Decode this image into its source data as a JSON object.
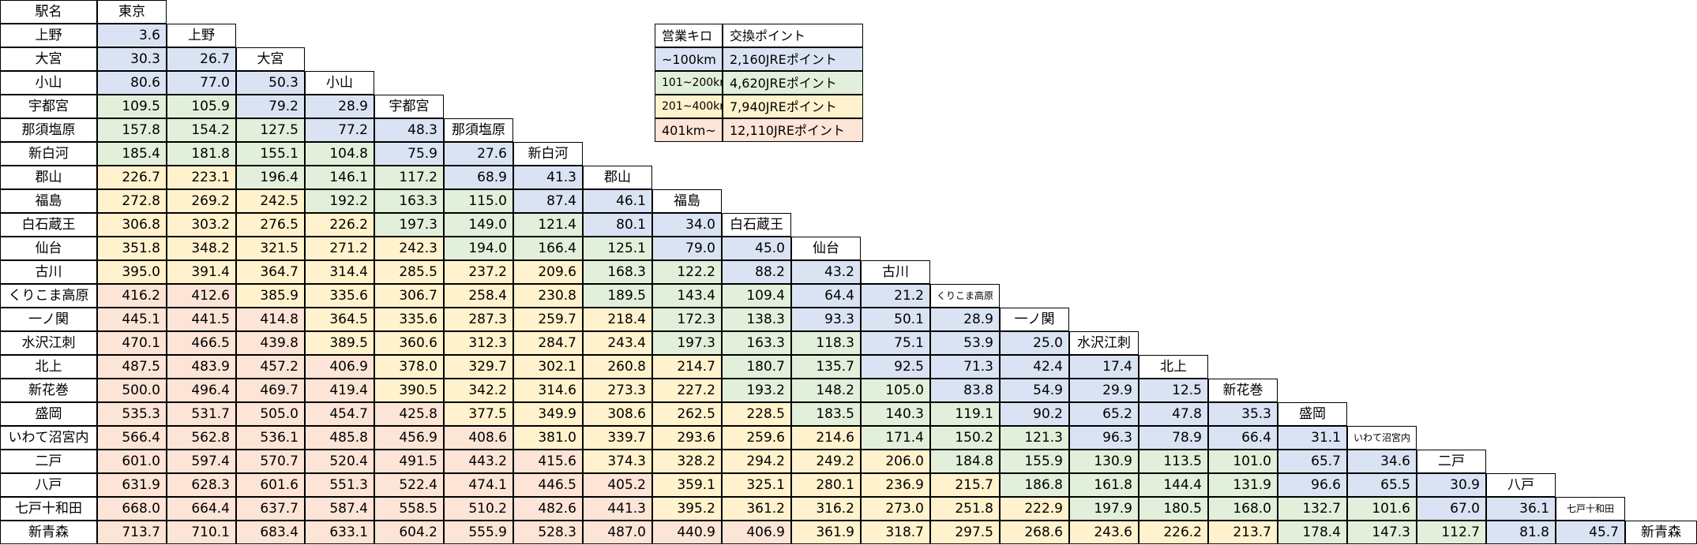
{
  "table": {
    "corner_label": "駅名",
    "stations": [
      "東京",
      "上野",
      "大宮",
      "小山",
      "宇都宮",
      "那須塩原",
      "新白河",
      "郡山",
      "福島",
      "白石蔵王",
      "仙台",
      "古川",
      "くりこま高原",
      "一ノ関",
      "水沢江刺",
      "北上",
      "新花巻",
      "盛岡",
      "いわて沼宮内",
      "二戸",
      "八戸",
      "七戸十和田",
      "新青森"
    ],
    "small_station_labels": [
      "くりこま高原",
      "いわて沼宮内",
      "七戸十和田"
    ],
    "rows": [
      [
        "3.6"
      ],
      [
        "30.3",
        "26.7"
      ],
      [
        "80.6",
        "77.0",
        "50.3"
      ],
      [
        "109.5",
        "105.9",
        "79.2",
        "28.9"
      ],
      [
        "157.8",
        "154.2",
        "127.5",
        "77.2",
        "48.3"
      ],
      [
        "185.4",
        "181.8",
        "155.1",
        "104.8",
        "75.9",
        "27.6"
      ],
      [
        "226.7",
        "223.1",
        "196.4",
        "146.1",
        "117.2",
        "68.9",
        "41.3"
      ],
      [
        "272.8",
        "269.2",
        "242.5",
        "192.2",
        "163.3",
        "115.0",
        "87.4",
        "46.1"
      ],
      [
        "306.8",
        "303.2",
        "276.5",
        "226.2",
        "197.3",
        "149.0",
        "121.4",
        "80.1",
        "34.0"
      ],
      [
        "351.8",
        "348.2",
        "321.5",
        "271.2",
        "242.3",
        "194.0",
        "166.4",
        "125.1",
        "79.0",
        "45.0"
      ],
      [
        "395.0",
        "391.4",
        "364.7",
        "314.4",
        "285.5",
        "237.2",
        "209.6",
        "168.3",
        "122.2",
        "88.2",
        "43.2"
      ],
      [
        "416.2",
        "412.6",
        "385.9",
        "335.6",
        "306.7",
        "258.4",
        "230.8",
        "189.5",
        "143.4",
        "109.4",
        "64.4",
        "21.2"
      ],
      [
        "445.1",
        "441.5",
        "414.8",
        "364.5",
        "335.6",
        "287.3",
        "259.7",
        "218.4",
        "172.3",
        "138.3",
        "93.3",
        "50.1",
        "28.9"
      ],
      [
        "470.1",
        "466.5",
        "439.8",
        "389.5",
        "360.6",
        "312.3",
        "284.7",
        "243.4",
        "197.3",
        "163.3",
        "118.3",
        "75.1",
        "53.9",
        "25.0"
      ],
      [
        "487.5",
        "483.9",
        "457.2",
        "406.9",
        "378.0",
        "329.7",
        "302.1",
        "260.8",
        "214.7",
        "180.7",
        "135.7",
        "92.5",
        "71.3",
        "42.4",
        "17.4"
      ],
      [
        "500.0",
        "496.4",
        "469.7",
        "419.4",
        "390.5",
        "342.2",
        "314.6",
        "273.3",
        "227.2",
        "193.2",
        "148.2",
        "105.0",
        "83.8",
        "54.9",
        "29.9",
        "12.5"
      ],
      [
        "535.3",
        "531.7",
        "505.0",
        "454.7",
        "425.8",
        "377.5",
        "349.9",
        "308.6",
        "262.5",
        "228.5",
        "183.5",
        "140.3",
        "119.1",
        "90.2",
        "65.2",
        "47.8",
        "35.3"
      ],
      [
        "566.4",
        "562.8",
        "536.1",
        "485.8",
        "456.9",
        "408.6",
        "381.0",
        "339.7",
        "293.6",
        "259.6",
        "214.6",
        "171.4",
        "150.2",
        "121.3",
        "96.3",
        "78.9",
        "66.4",
        "31.1"
      ],
      [
        "601.0",
        "597.4",
        "570.7",
        "520.4",
        "491.5",
        "443.2",
        "415.6",
        "374.3",
        "328.2",
        "294.2",
        "249.2",
        "206.0",
        "184.8",
        "155.9",
        "130.9",
        "113.5",
        "101.0",
        "65.7",
        "34.6"
      ],
      [
        "631.9",
        "628.3",
        "601.6",
        "551.3",
        "522.4",
        "474.1",
        "446.5",
        "405.2",
        "359.1",
        "325.1",
        "280.1",
        "236.9",
        "215.7",
        "186.8",
        "161.8",
        "144.4",
        "131.9",
        "96.6",
        "65.5",
        "30.9"
      ],
      [
        "668.0",
        "664.4",
        "637.7",
        "587.4",
        "558.5",
        "510.2",
        "482.6",
        "441.3",
        "395.2",
        "361.2",
        "316.2",
        "273.0",
        "251.8",
        "222.9",
        "197.9",
        "180.5",
        "168.0",
        "132.7",
        "101.6",
        "67.0",
        "36.1"
      ],
      [
        "713.7",
        "710.1",
        "683.4",
        "633.1",
        "604.2",
        "555.9",
        "528.3",
        "487.0",
        "440.9",
        "406.9",
        "361.9",
        "318.7",
        "297.5",
        "268.6",
        "243.6",
        "226.2",
        "213.7",
        "178.4",
        "147.3",
        "112.7",
        "81.8",
        "45.7"
      ]
    ]
  },
  "legend": {
    "header": [
      "営業キロ",
      "交換ポイント"
    ],
    "rows": [
      {
        "range": "~100km",
        "points": "2,160JREポイント",
        "color": "#dae3f3"
      },
      {
        "range": "101~200km",
        "points": "4,620JREポイント",
        "color": "#e2efda"
      },
      {
        "range": "201~400km",
        "points": "7,940JREポイント",
        "color": "#fff2cc"
      },
      {
        "range": "401km~",
        "points": "12,110JREポイント",
        "color": "#fce4d6"
      }
    ]
  }
}
